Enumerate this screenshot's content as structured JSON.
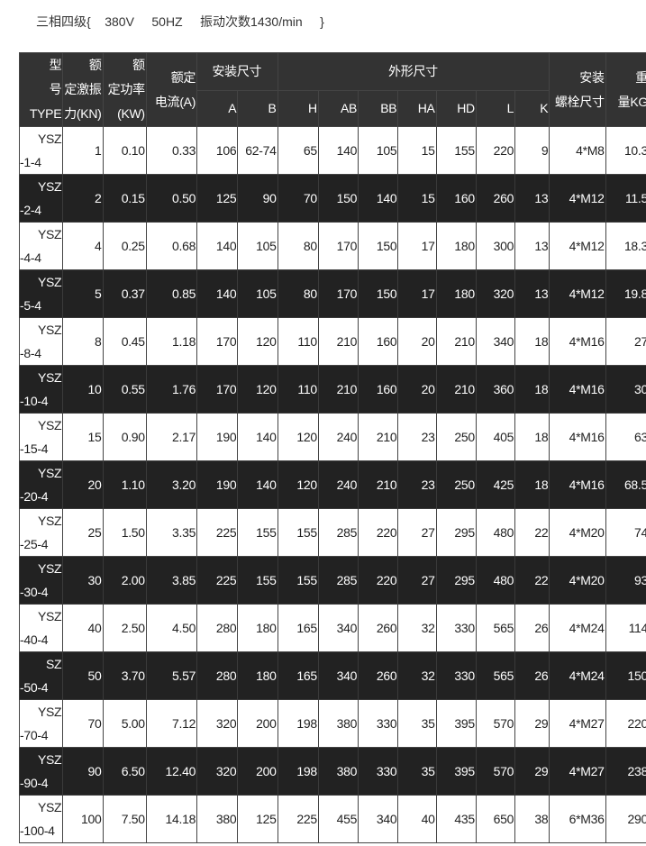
{
  "title": "三相四级{    380V     50HZ     振动次数1430/min     }",
  "header": {
    "type": [
      "型",
      "号",
      "TYPE"
    ],
    "force": [
      "额",
      "定激振",
      "力(KN)"
    ],
    "power": [
      "额",
      "定功率",
      "(KW)"
    ],
    "current": [
      "额定",
      "电流(A)"
    ],
    "install": "安装尺寸",
    "outline": "外形尺寸",
    "bolt": [
      "安装",
      "螺栓尺寸"
    ],
    "weight": [
      "重",
      "量KG"
    ],
    "sub": [
      "A",
      "B",
      "H",
      "AB",
      "BB",
      "HA",
      "HD",
      "L",
      "K"
    ]
  },
  "rows": [
    {
      "t1": "YSZ",
      "t2": "-1-4",
      "v": [
        "1",
        "0.10",
        "0.33",
        "106",
        "62-74",
        "65",
        "140",
        "105",
        "15",
        "155",
        "220",
        "9",
        "4*M8",
        "10.3"
      ]
    },
    {
      "t1": "YSZ",
      "t2": "-2-4",
      "v": [
        "2",
        "0.15",
        "0.50",
        "125",
        "90",
        "70",
        "150",
        "140",
        "15",
        "160",
        "260",
        "13",
        "4*M12",
        "11.5"
      ]
    },
    {
      "t1": "YSZ",
      "t2": "-4-4",
      "v": [
        "4",
        "0.25",
        "0.68",
        "140",
        "105",
        "80",
        "170",
        "150",
        "17",
        "180",
        "300",
        "13",
        "4*M12",
        "18.3"
      ]
    },
    {
      "t1": "YSZ",
      "t2": "-5-4",
      "v": [
        "5",
        "0.37",
        "0.85",
        "140",
        "105",
        "80",
        "170",
        "150",
        "17",
        "180",
        "320",
        "13",
        "4*M12",
        "19.8"
      ]
    },
    {
      "t1": "YSZ",
      "t2": "-8-4",
      "v": [
        "8",
        "0.45",
        "1.18",
        "170",
        "120",
        "110",
        "210",
        "160",
        "20",
        "210",
        "340",
        "18",
        "4*M16",
        "27"
      ]
    },
    {
      "t1": "YSZ",
      "t2": "-10-4",
      "v": [
        "10",
        "0.55",
        "1.76",
        "170",
        "120",
        "110",
        "210",
        "160",
        "20",
        "210",
        "360",
        "18",
        "4*M16",
        "30"
      ]
    },
    {
      "t1": "YSZ",
      "t2": "-15-4",
      "v": [
        "15",
        "0.90",
        "2.17",
        "190",
        "140",
        "120",
        "240",
        "210",
        "23",
        "250",
        "405",
        "18",
        "4*M16",
        "63"
      ]
    },
    {
      "t1": "YSZ",
      "t2": "-20-4",
      "v": [
        "20",
        "1.10",
        "3.20",
        "190",
        "140",
        "120",
        "240",
        "210",
        "23",
        "250",
        "425",
        "18",
        "4*M16",
        "68.5"
      ]
    },
    {
      "t1": "YSZ",
      "t2": "-25-4",
      "v": [
        "25",
        "1.50",
        "3.35",
        "225",
        "155",
        "155",
        "285",
        "220",
        "27",
        "295",
        "480",
        "22",
        "4*M20",
        "74"
      ]
    },
    {
      "t1": "YSZ",
      "t2": "-30-4",
      "v": [
        "30",
        "2.00",
        "3.85",
        "225",
        "155",
        "155",
        "285",
        "220",
        "27",
        "295",
        "480",
        "22",
        "4*M20",
        "93"
      ]
    },
    {
      "t1": "YSZ",
      "t2": "-40-4",
      "v": [
        "40",
        "2.50",
        "4.50",
        "280",
        "180",
        "165",
        "340",
        "260",
        "32",
        "330",
        "565",
        "26",
        "4*M24",
        "114"
      ]
    },
    {
      "t1": "SZ",
      "t2": "-50-4",
      "v": [
        "50",
        "3.70",
        "5.57",
        "280",
        "180",
        "165",
        "340",
        "260",
        "32",
        "330",
        "565",
        "26",
        "4*M24",
        "150"
      ]
    },
    {
      "t1": "YSZ",
      "t2": "-70-4",
      "v": [
        "70",
        "5.00",
        "7.12",
        "320",
        "200",
        "198",
        "380",
        "330",
        "35",
        "395",
        "570",
        "29",
        "4*M27",
        "220"
      ]
    },
    {
      "t1": "YSZ",
      "t2": "-90-4",
      "v": [
        "90",
        "6.50",
        "12.40",
        "320",
        "200",
        "198",
        "380",
        "330",
        "35",
        "395",
        "570",
        "29",
        "4*M27",
        "238"
      ]
    },
    {
      "t1": "YSZ",
      "t2": "-100-4",
      "v": [
        "100",
        "7.50",
        "14.18",
        "380",
        "125",
        "225",
        "455",
        "340",
        "40",
        "435",
        "650",
        "38",
        "6*M36",
        "290"
      ]
    }
  ]
}
